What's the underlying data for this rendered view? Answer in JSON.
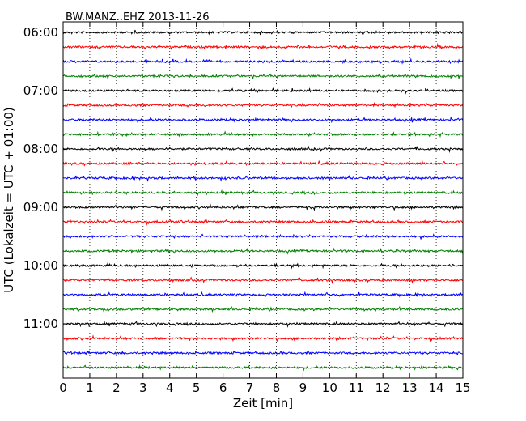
{
  "chart_data": {
    "type": "line",
    "title": "BW.MANZ..EHZ 2013-11-26",
    "xlabel": "Zeit  [min]",
    "ylabel": "UTC (Lokalzeit = UTC + 01:00)",
    "x_ticks": [
      "0",
      "1",
      "2",
      "3",
      "4",
      "5",
      "6",
      "7",
      "8",
      "9",
      "10",
      "11",
      "12",
      "13",
      "14",
      "15"
    ],
    "xlim": [
      0,
      15
    ],
    "y_ticks": [
      "06:00",
      "07:00",
      "08:00",
      "09:00",
      "10:00",
      "11:00"
    ],
    "trace_interval_minutes": 15,
    "start_time": "06:00",
    "trace_count": 24,
    "grid": "vertical dotted at each minute",
    "colors": [
      "#000000",
      "#ff0000",
      "#0000ff",
      "#008000"
    ]
  }
}
